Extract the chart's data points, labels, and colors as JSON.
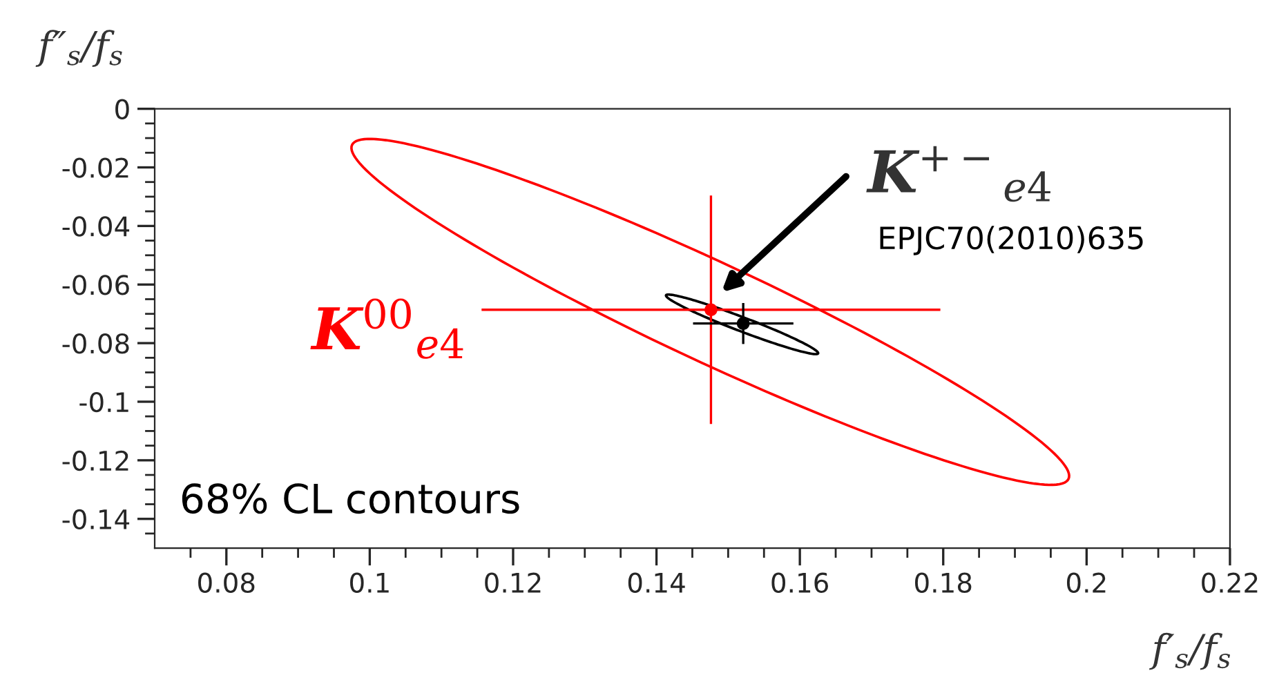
{
  "chart_data": {
    "type": "scatter",
    "xlabel": "f′$_{s}$/f$_{s}$",
    "ylabel": "f″$_{s}$/f$_{s}$",
    "xlim": [
      0.07,
      0.22
    ],
    "ylim": [
      -0.15,
      0
    ],
    "xticks": [
      {
        "value": 0.075,
        "label": null
      },
      0.08,
      {
        "value": 0.085,
        "label": null
      },
      {
        "value": 0.09,
        "label": null
      },
      {
        "value": 0.095,
        "label": null
      },
      0.1,
      {
        "value": 0.105,
        "label": null
      },
      {
        "value": 0.11,
        "label": null
      },
      {
        "value": 0.115,
        "label": null
      },
      0.12,
      {
        "value": 0.125,
        "label": null
      },
      {
        "value": 0.13,
        "label": null
      },
      {
        "value": 0.135,
        "label": null
      },
      0.14,
      {
        "value": 0.145,
        "label": null
      },
      {
        "value": 0.15,
        "label": null
      },
      {
        "value": 0.155,
        "label": null
      },
      0.16,
      {
        "value": 0.165,
        "label": null
      },
      {
        "value": 0.17,
        "label": null
      },
      {
        "value": 0.175,
        "label": null
      },
      0.18,
      {
        "value": 0.185,
        "label": null
      },
      {
        "value": 0.19,
        "label": null
      },
      {
        "value": 0.195,
        "label": null
      },
      0.2,
      {
        "value": 0.205,
        "label": null
      },
      {
        "value": 0.21,
        "label": null
      },
      {
        "value": 0.215,
        "label": null
      },
      0.22
    ],
    "yticks": [
      0,
      {
        "value": -0.005,
        "label": null
      },
      {
        "value": -0.01,
        "label": null
      },
      {
        "value": -0.015,
        "label": null
      },
      -0.02,
      {
        "value": -0.025,
        "label": null
      },
      {
        "value": -0.03,
        "label": null
      },
      {
        "value": -0.035,
        "label": null
      },
      -0.04,
      {
        "value": -0.045,
        "label": null
      },
      {
        "value": -0.05,
        "label": null
      },
      {
        "value": -0.055,
        "label": null
      },
      -0.06,
      {
        "value": -0.065,
        "label": null
      },
      {
        "value": -0.07,
        "label": null
      },
      {
        "value": -0.075,
        "label": null
      },
      -0.08,
      {
        "value": -0.085,
        "label": null
      },
      {
        "value": -0.09,
        "label": null
      },
      {
        "value": -0.095,
        "label": null
      },
      -0.1,
      {
        "value": -0.105,
        "label": null
      },
      {
        "value": -0.11,
        "label": null
      },
      {
        "value": -0.115,
        "label": null
      },
      -0.12,
      {
        "value": -0.125,
        "label": null
      },
      {
        "value": -0.13,
        "label": null
      },
      {
        "value": -0.135,
        "label": null
      },
      -0.14,
      {
        "value": -0.145,
        "label": null
      }
    ],
    "grid": false,
    "legend": false,
    "series": [
      {
        "color": "#ff0000",
        "marker": "circle",
        "x": [
          0.1476
        ],
        "values": [
          -0.0686
        ],
        "errors": [
          0.039
        ],
        "xerrors": [
          0.032
        ]
      },
      {
        "color": "#000000",
        "marker": "circle",
        "x": [
          0.1521
        ],
        "values": [
          -0.0733
        ],
        "errors": [
          0.007
        ],
        "xerrors": [
          0.007
        ]
      }
    ],
    "annotations": [
      "K$^{00}$$_{e4}$",
      "K$^{+−}$$_{e4}$",
      "EPJC70(2010)635",
      "68% CL contours"
    ]
  }
}
